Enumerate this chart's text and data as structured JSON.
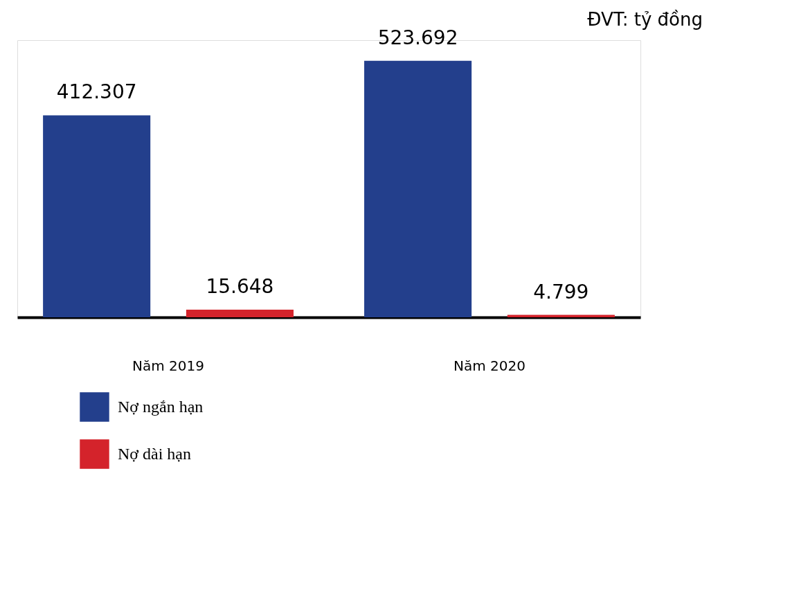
{
  "chart_data": {
    "type": "bar",
    "annotations": [
      "ĐVT: tỷ đồng"
    ],
    "categories": [
      "Năm 2019",
      "Năm 2020"
    ],
    "series": [
      {
        "name": "Nợ ngắn hạn",
        "color": "#233f8c",
        "values": [
          412307,
          523692
        ],
        "value_labels": [
          "412.307",
          "523.692"
        ]
      },
      {
        "name": "Nợ dài hạn",
        "color": "#d4232b",
        "values": [
          15648,
          4799
        ],
        "value_labels": [
          "15.648",
          "4.799"
        ]
      }
    ],
    "legend": "bottom left",
    "grid": false
  }
}
